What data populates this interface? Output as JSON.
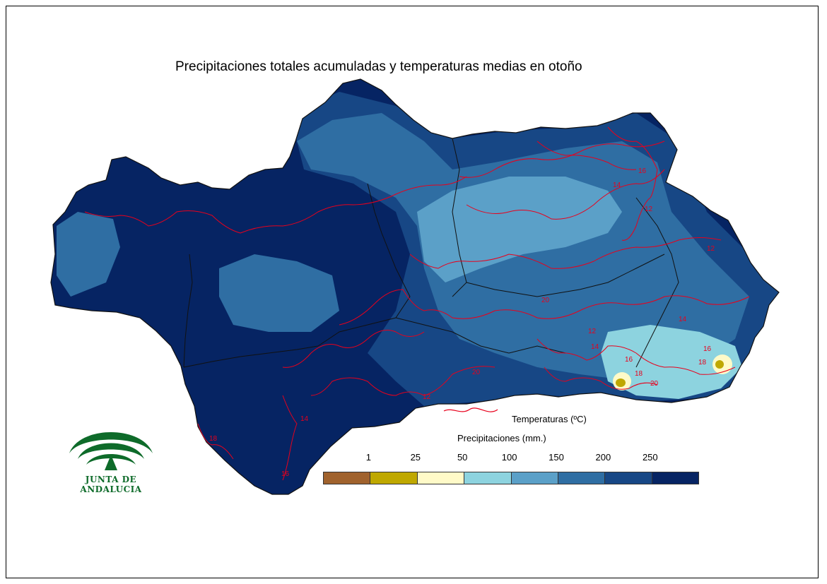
{
  "title": "Precipitaciones totales acumuladas y temperaturas medias en otoño",
  "logo": {
    "text": "JUNTA DE ANDALUCIA",
    "color": "#0e6b2a"
  },
  "legend": {
    "temperature_label": "Temperaturas (ºC)",
    "temperature_color": "#e8001c",
    "precip_title": "Precipitaciones (mm.)",
    "precip_ticks": [
      "1",
      "25",
      "50",
      "100",
      "150",
      "200",
      "250"
    ],
    "precip_colors": [
      "#a0622d",
      "#bfa800",
      "#fffac8",
      "#8dd3df",
      "#5ba0c8",
      "#2f6ea3",
      "#174785",
      "#062463"
    ]
  },
  "isotherm_labels": [
    "12",
    "14",
    "16",
    "18",
    "20"
  ],
  "colors": {
    "frame": "#000000",
    "province_border": "#111111"
  }
}
